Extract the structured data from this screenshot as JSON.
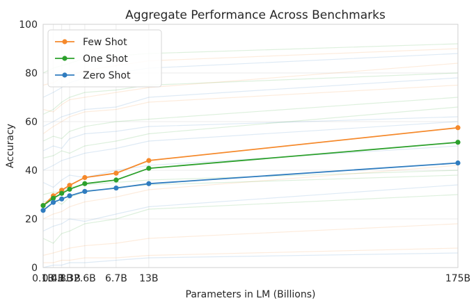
{
  "chart_data": {
    "type": "line",
    "title": "Aggregate Performance Across Benchmarks",
    "xlabel": "Parameters in LM (Billions)",
    "ylabel": "Accuracy",
    "x": [
      0.1,
      0.4,
      0.8,
      1.3,
      2.6,
      6.7,
      13,
      175
    ],
    "x_scale": "sqrt",
    "xlim": [
      0.1,
      175
    ],
    "ylim": [
      0,
      100
    ],
    "x_tick_labels": [
      "0.1B",
      "0.4B",
      "0.8B",
      "1.3B",
      "2.6B",
      "6.7B",
      "13B",
      "175B"
    ],
    "y_ticks": [
      0,
      20,
      40,
      60,
      80,
      100
    ],
    "grid": true,
    "legend_position": "top-left",
    "series": [
      {
        "name": "Few Shot",
        "color": "#f5892b",
        "values": [
          25.5,
          29.5,
          31.8,
          33.8,
          37.0,
          38.8,
          44.0,
          57.5
        ]
      },
      {
        "name": "One Shot",
        "color": "#2ca02c",
        "values": [
          25.5,
          28.5,
          30.5,
          32.2,
          34.5,
          36.0,
          40.8,
          51.5
        ]
      },
      {
        "name": "Zero Shot",
        "color": "#2f7cbf",
        "values": [
          23.5,
          26.8,
          28.2,
          29.5,
          31.3,
          32.7,
          34.5,
          43.0
        ]
      }
    ],
    "background_traces": [
      {
        "color": "#f5892b",
        "values": [
          5,
          6,
          7,
          8,
          9,
          10,
          12,
          18
        ]
      },
      {
        "color": "#2ca02c",
        "values": [
          30,
          31,
          31,
          33,
          34,
          35,
          36,
          40
        ]
      },
      {
        "color": "#2f7cbf",
        "values": [
          40,
          42,
          44,
          45,
          47,
          49,
          52,
          60
        ]
      },
      {
        "color": "#f5892b",
        "values": [
          55,
          58,
          60,
          62,
          64,
          65,
          68,
          75
        ]
      },
      {
        "color": "#2ca02c",
        "values": [
          63,
          65,
          68,
          70,
          72,
          73,
          75,
          80
        ]
      },
      {
        "color": "#2f7cbf",
        "values": [
          70,
          72,
          74,
          76,
          78,
          80,
          82,
          88
        ]
      },
      {
        "color": "#f5892b",
        "values": [
          20,
          22,
          23,
          25,
          27,
          29,
          32,
          42
        ]
      },
      {
        "color": "#2ca02c",
        "values": [
          12,
          10,
          14,
          15,
          18,
          20,
          24,
          30
        ]
      },
      {
        "color": "#2f7cbf",
        "values": [
          48,
          50,
          49,
          53,
          55,
          56,
          58,
          62
        ]
      },
      {
        "color": "#2ca02c",
        "values": [
          80,
          82,
          83,
          84,
          86,
          87,
          88,
          92
        ]
      },
      {
        "color": "#f5892b",
        "values": [
          2,
          2,
          3,
          3,
          4,
          4,
          5,
          8
        ]
      },
      {
        "color": "#2f7cbf",
        "values": [
          35,
          33,
          36,
          38,
          37,
          40,
          42,
          50
        ]
      },
      {
        "color": "#2ca02c",
        "values": [
          45,
          46,
          48,
          47,
          50,
          52,
          55,
          66
        ]
      },
      {
        "color": "#f5892b",
        "values": [
          65,
          64,
          67,
          69,
          70,
          72,
          74,
          84
        ]
      },
      {
        "color": "#2f7cbf",
        "values": [
          15,
          17,
          18,
          20,
          19,
          22,
          25,
          34
        ]
      },
      {
        "color": "#2ca02c",
        "values": [
          52,
          54,
          53,
          56,
          58,
          60,
          61,
          70
        ]
      },
      {
        "color": "#f5892b",
        "values": [
          75,
          76,
          78,
          79,
          81,
          83,
          85,
          90
        ]
      },
      {
        "color": "#2f7cbf",
        "values": [
          0,
          1,
          1,
          2,
          2,
          3,
          4,
          6
        ]
      },
      {
        "color": "#2ca02c",
        "values": [
          27,
          28,
          26,
          29,
          31,
          33,
          34,
          38
        ]
      },
      {
        "color": "#2f7cbf",
        "values": [
          58,
          60,
          62,
          63,
          65,
          66,
          70,
          78
        ]
      }
    ]
  }
}
